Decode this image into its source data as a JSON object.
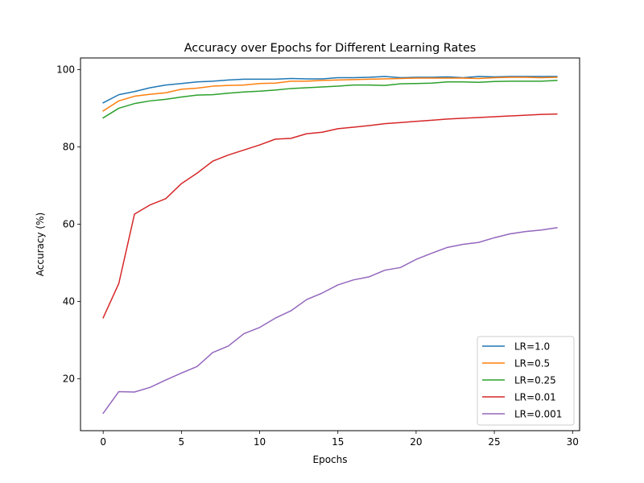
{
  "chart_data": {
    "type": "line",
    "title": "Accuracy over Epochs for Different Learning Rates",
    "xlabel": "Epochs",
    "ylabel": "Accuracy (%)",
    "xlim": [
      -1.45,
      30.45
    ],
    "ylim": [
      6.6,
      103.0
    ],
    "xticks": [
      0,
      5,
      10,
      15,
      20,
      25,
      30
    ],
    "yticks": [
      20,
      40,
      60,
      80,
      100
    ],
    "grid": false,
    "legend_position": "lower right",
    "x": [
      0,
      1,
      2,
      3,
      4,
      5,
      6,
      7,
      8,
      9,
      10,
      11,
      12,
      13,
      14,
      15,
      16,
      17,
      18,
      19,
      20,
      21,
      22,
      23,
      24,
      25,
      26,
      27,
      28,
      29
    ],
    "series": [
      {
        "name": "LR=1.0",
        "color": "#1f77b4",
        "values": [
          91.4,
          93.5,
          94.3,
          95.3,
          96.0,
          96.4,
          96.8,
          97.0,
          97.3,
          97.5,
          97.5,
          97.5,
          97.7,
          97.6,
          97.6,
          97.9,
          97.9,
          98.0,
          98.2,
          97.9,
          98.0,
          98.0,
          98.1,
          97.9,
          98.2,
          98.1,
          98.2,
          98.2,
          98.2,
          98.2
        ]
      },
      {
        "name": "LR=0.5",
        "color": "#ff7f0e",
        "values": [
          89.3,
          91.9,
          93.1,
          93.6,
          94.0,
          94.9,
          95.2,
          95.7,
          95.9,
          96.0,
          96.4,
          96.5,
          97.0,
          97.0,
          97.2,
          97.3,
          97.4,
          97.5,
          97.6,
          97.7,
          97.8,
          97.8,
          97.8,
          97.8,
          97.7,
          97.9,
          98.0,
          98.0,
          97.9,
          98.0
        ]
      },
      {
        "name": "LR=0.25",
        "color": "#2ca02c",
        "values": [
          87.5,
          90.0,
          91.2,
          91.9,
          92.3,
          92.9,
          93.4,
          93.5,
          93.9,
          94.2,
          94.4,
          94.7,
          95.1,
          95.3,
          95.5,
          95.7,
          96.0,
          96.0,
          95.9,
          96.3,
          96.4,
          96.5,
          96.8,
          96.8,
          96.7,
          96.9,
          97.0,
          97.0,
          97.0,
          97.2
        ]
      },
      {
        "name": "LR=0.01",
        "color": "#d62728",
        "values": [
          35.8,
          44.7,
          62.6,
          65.0,
          66.6,
          70.5,
          73.2,
          76.3,
          77.9,
          79.2,
          80.5,
          82.0,
          82.2,
          83.4,
          83.8,
          84.7,
          85.1,
          85.5,
          86.0,
          86.3,
          86.6,
          86.9,
          87.2,
          87.4,
          87.6,
          87.8,
          88.0,
          88.2,
          88.4,
          88.5
        ]
      },
      {
        "name": "LR=0.001",
        "color": "#9467bd",
        "values": [
          11.1,
          16.7,
          16.6,
          17.8,
          19.7,
          21.5,
          23.2,
          26.8,
          28.5,
          31.7,
          33.3,
          35.7,
          37.6,
          40.5,
          42.2,
          44.3,
          45.6,
          46.4,
          48.1,
          48.8,
          50.9,
          52.5,
          54.0,
          54.8,
          55.3,
          56.5,
          57.5,
          58.1,
          58.5,
          59.1
        ]
      }
    ]
  }
}
